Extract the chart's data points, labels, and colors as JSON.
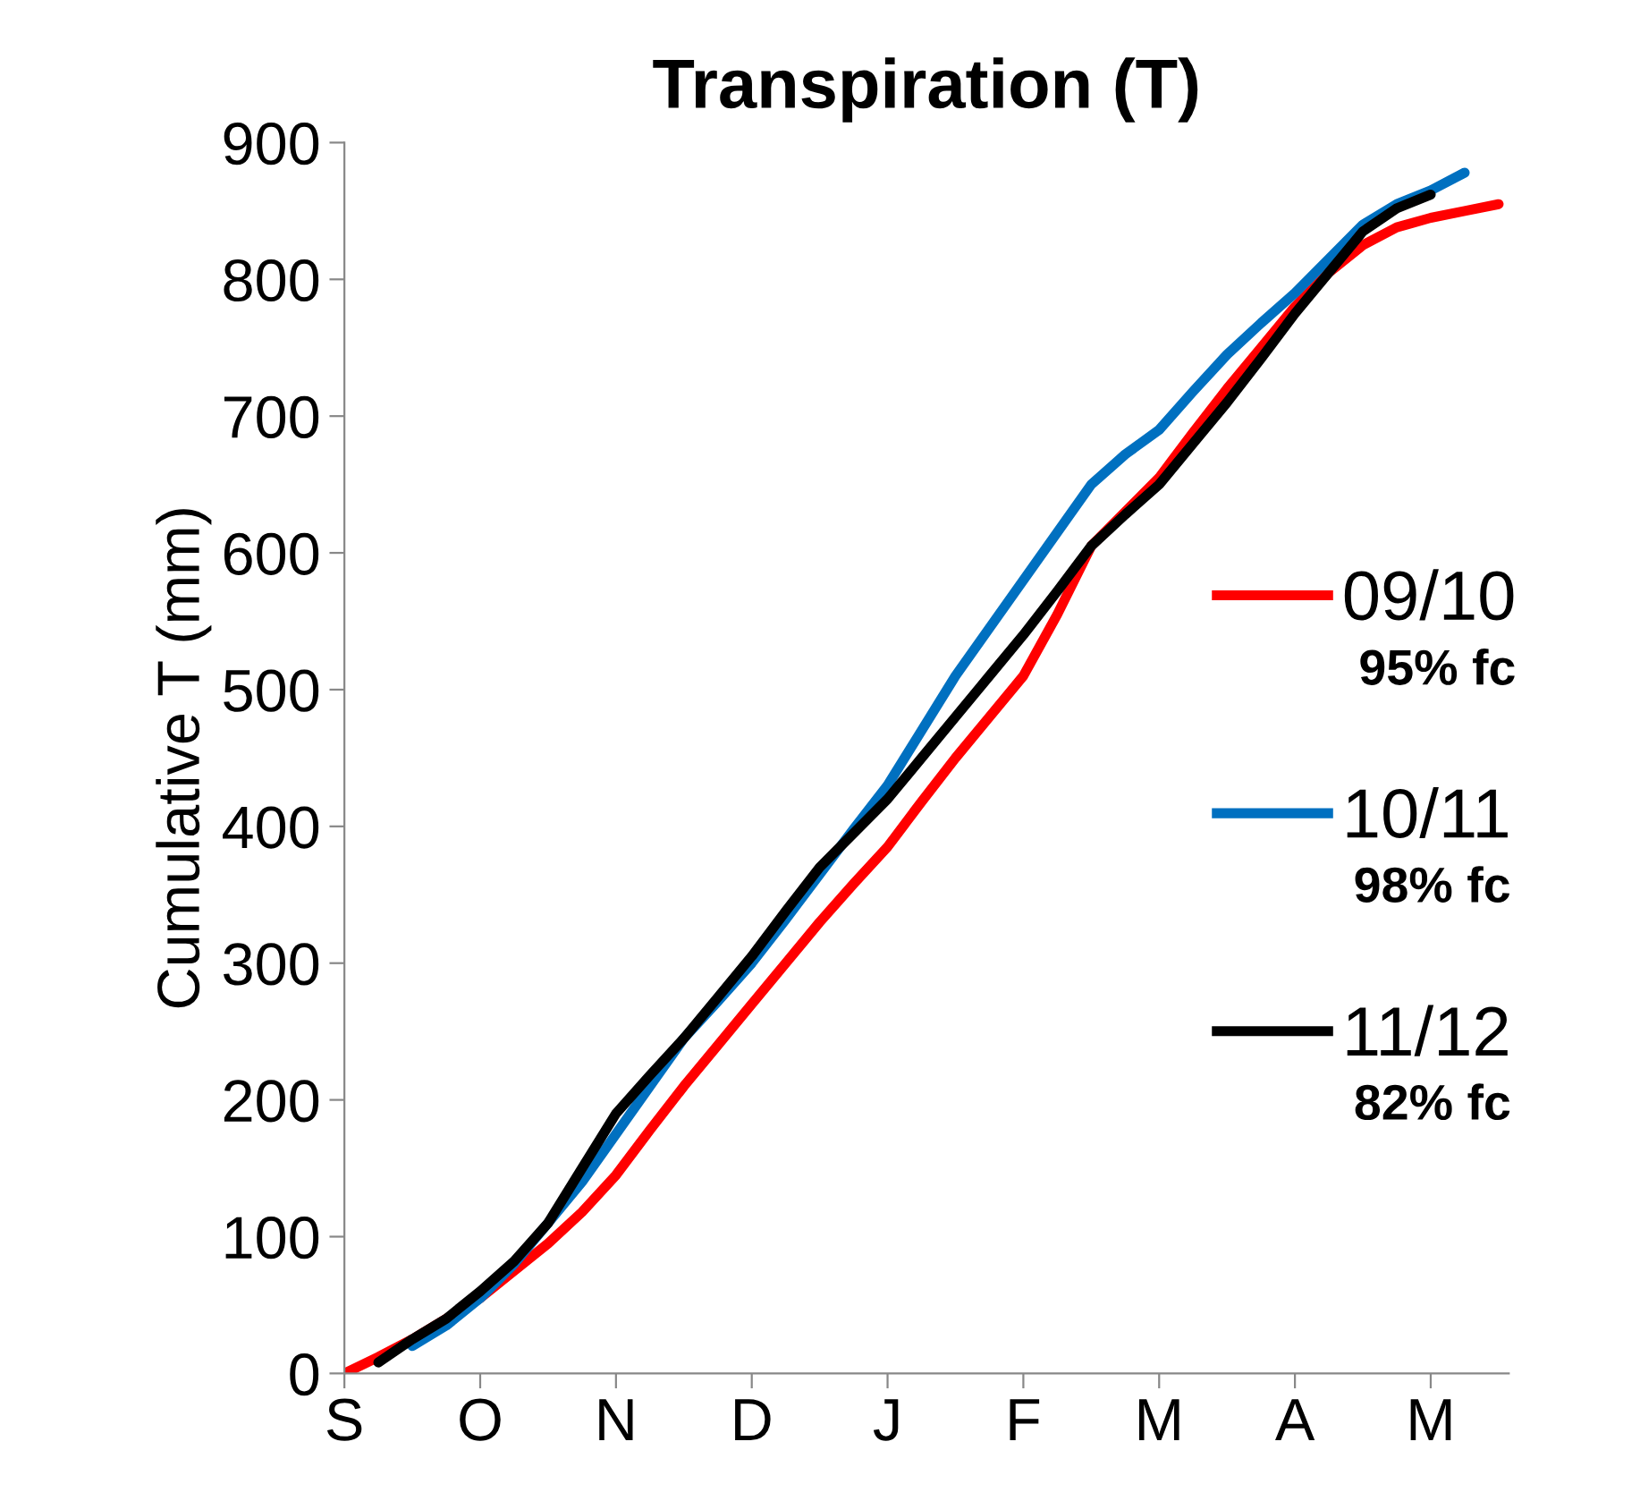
{
  "chart_data": {
    "type": "line",
    "title": "Transpiration (T)",
    "ylabel": "Cumulative T (mm)",
    "categories": [
      "S",
      null,
      null,
      null,
      "O",
      null,
      null,
      null,
      "N",
      null,
      null,
      null,
      "D",
      null,
      null,
      null,
      "J",
      null,
      null,
      null,
      "F",
      null,
      null,
      null,
      "M",
      null,
      null,
      null,
      "A",
      null,
      null,
      null,
      "M",
      null,
      null
    ],
    "ylim": [
      0,
      900
    ],
    "yticks": [
      0,
      100,
      200,
      300,
      400,
      500,
      600,
      700,
      800,
      900
    ],
    "grid": false,
    "legend": "right",
    "marker": "none",
    "line_style": "solid",
    "annotations": [
      "95% fc",
      "98% fc",
      "82% fc"
    ],
    "series": [
      {
        "name": "09/10",
        "color": "#ff0000",
        "values": [
          0,
          12,
          25,
          40,
          55,
          75,
          95,
          118,
          145,
          178,
          210,
          240,
          270,
          300,
          330,
          358,
          385,
          418,
          450,
          480,
          510,
          555,
          605,
          630,
          655,
          688,
          720,
          750,
          780,
          805,
          825,
          838,
          845,
          850,
          855
        ]
      },
      {
        "name": "10/11",
        "color": "#0070c0",
        "values": [
          null,
          null,
          20,
          35,
          55,
          80,
          110,
          140,
          175,
          210,
          245,
          272,
          300,
          332,
          365,
          398,
          430,
          470,
          510,
          545,
          580,
          615,
          650,
          672,
          690,
          718,
          745,
          768,
          790,
          815,
          840,
          855,
          865,
          878,
          null
        ]
      },
      {
        "name": "11/12",
        "color": "#000000",
        "values": [
          null,
          8,
          25,
          40,
          60,
          82,
          110,
          150,
          190,
          218,
          245,
          275,
          305,
          338,
          370,
          395,
          420,
          450,
          480,
          510,
          540,
          572,
          605,
          628,
          650,
          680,
          710,
          742,
          775,
          805,
          835,
          852,
          862,
          null,
          null
        ]
      }
    ]
  }
}
